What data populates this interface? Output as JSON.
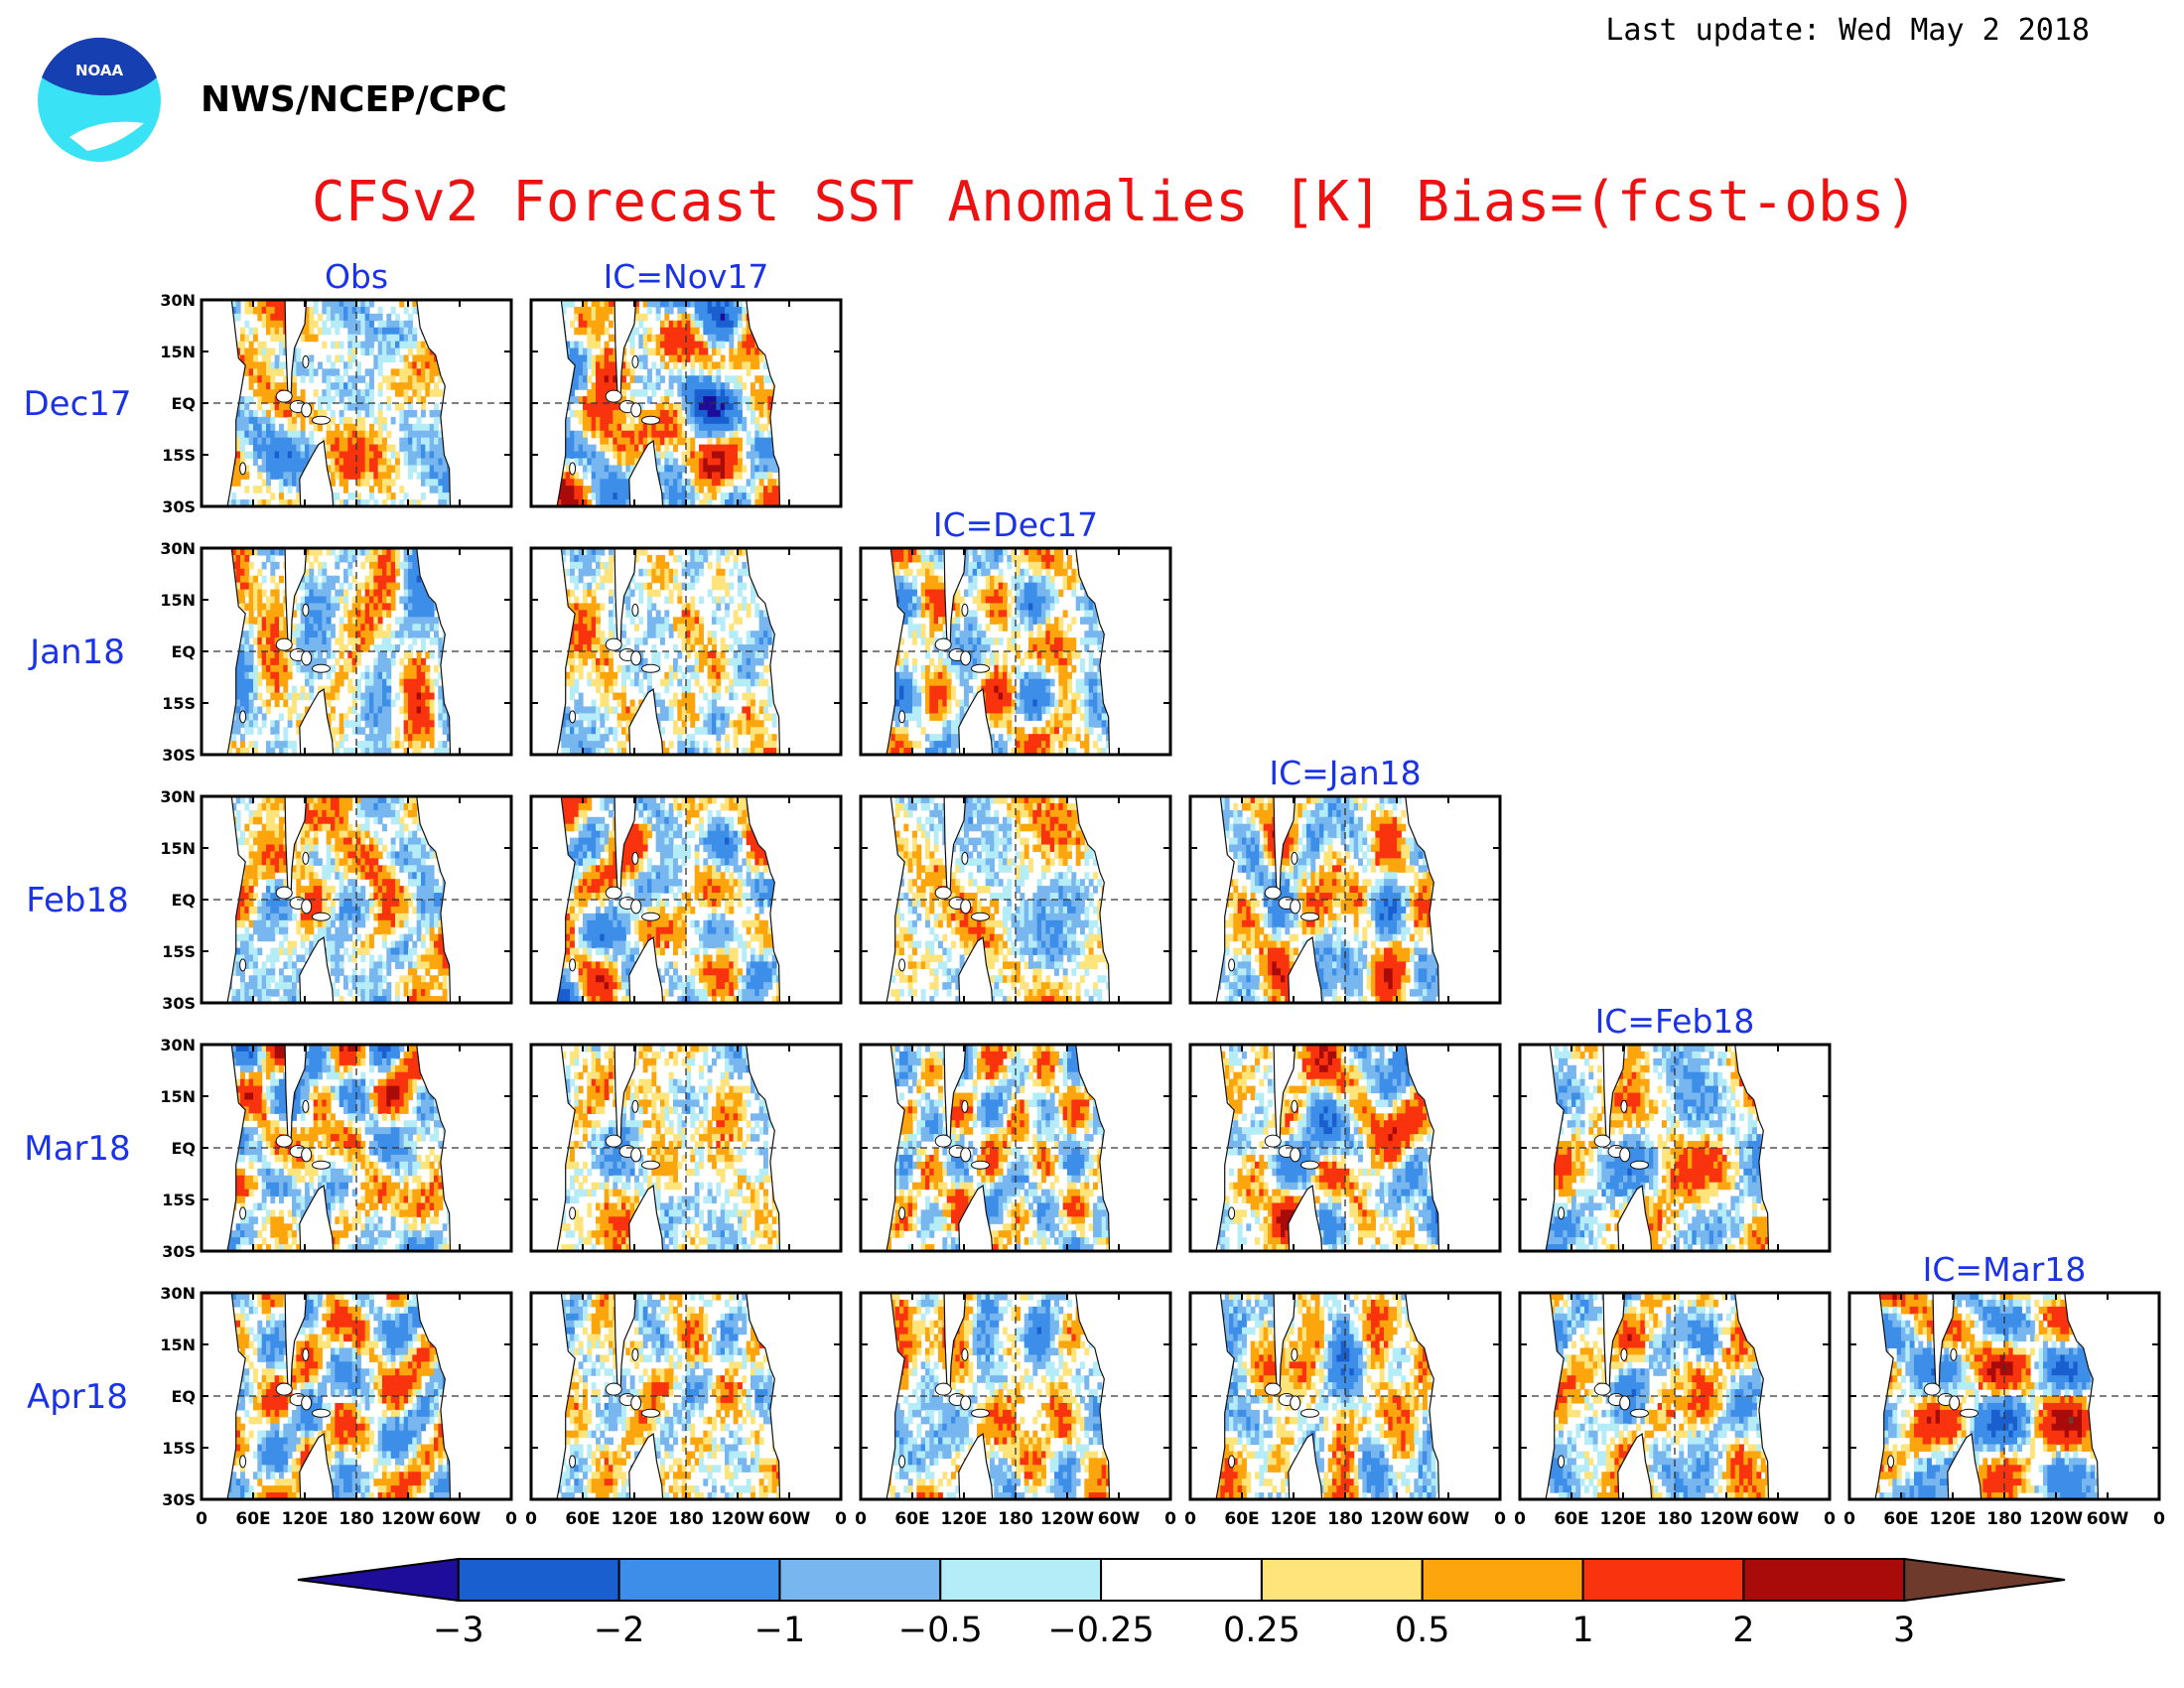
{
  "header": {
    "last_update": "Last update: Wed May 2 2018",
    "agency": "NWS/NCEP/CPC",
    "logo_text": "NOAA"
  },
  "chart_data": {
    "type": "heatmap",
    "title": "CFSv2 Forecast SST Anomalies [K] Bias=(fcst-obs)",
    "rows": [
      "Dec17",
      "Jan18",
      "Feb18",
      "Mar18",
      "Apr18"
    ],
    "column_titles": [
      "Obs",
      "IC=Nov17",
      "IC=Dec17",
      "IC=Jan18",
      "IC=Feb18",
      "IC=Mar18"
    ],
    "panels_per_row": [
      2,
      3,
      4,
      5,
      6
    ],
    "lat_ticks": [
      "30N",
      "15N",
      "EQ",
      "15S",
      "30S"
    ],
    "lon_ticks": [
      "0",
      "60E",
      "120E",
      "180",
      "120W",
      "60W",
      "0"
    ],
    "lat_range": [
      -30,
      30
    ],
    "lon_range": [
      0,
      360
    ],
    "colorbar": {
      "boundaries": [
        -3,
        -2,
        -1,
        -0.5,
        -0.25,
        0.25,
        0.5,
        1,
        2,
        3
      ],
      "labels": [
        "−3",
        "−2",
        "−1",
        "−0.5",
        "−0.25",
        "0.25",
        "0.5",
        "1",
        "2",
        "3"
      ],
      "colors": [
        "#1e0c9a",
        "#1a5fd0",
        "#3c8ee8",
        "#78b6f0",
        "#b4ecf7",
        "#ffffff",
        "#fee47a",
        "#fca50d",
        "#f8330d",
        "#a90a0a",
        "#6e3a2c"
      ],
      "extend": "both"
    },
    "grid": "dashed lines at equator and 180",
    "colors": {
      "title": "#ee1111",
      "labels": "#1a33e6"
    }
  }
}
